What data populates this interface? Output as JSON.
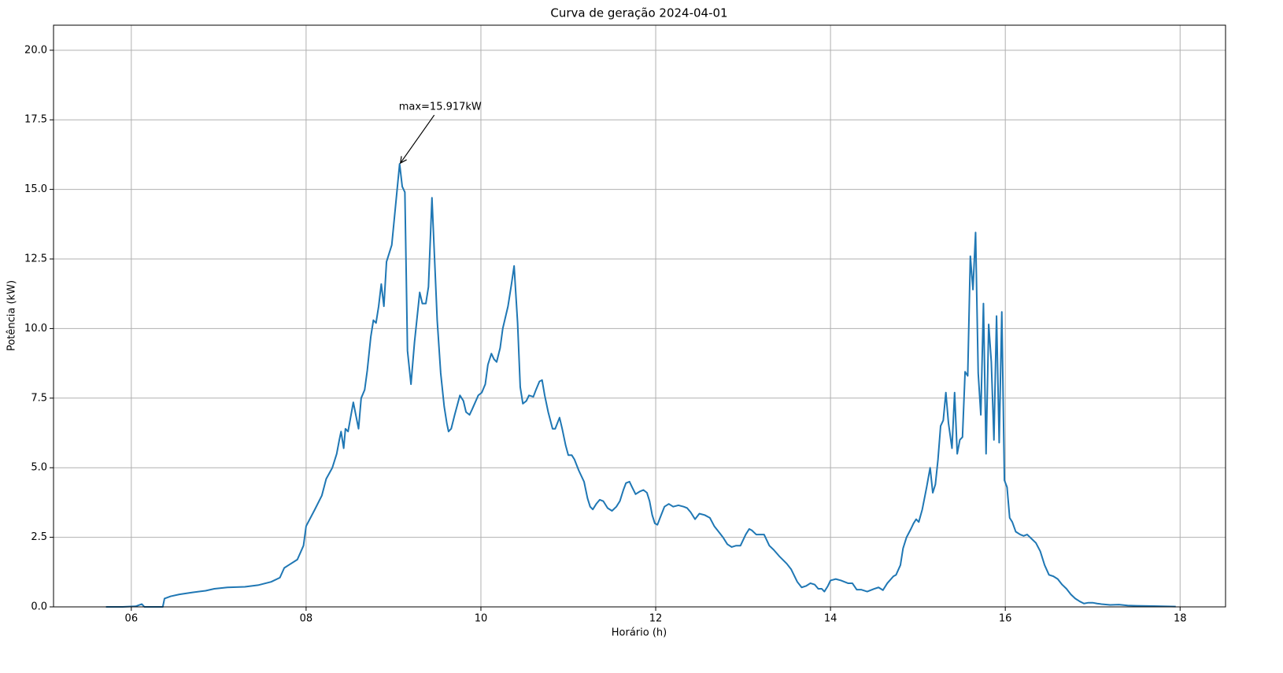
{
  "chart_data": {
    "type": "line",
    "title": "Curva de geração 2024-04-01",
    "x_label": "Horário (h)",
    "y_label": "Potência (kW)",
    "color": "#1f77b4",
    "grid": true,
    "xlim": [
      5.11,
      18.52
    ],
    "ylim": [
      0,
      20.9
    ],
    "xticks": [
      {
        "value": 6,
        "label": "06"
      },
      {
        "value": 8,
        "label": "08"
      },
      10,
      12,
      14,
      16,
      18
    ],
    "yticks": [
      {
        "value": 0,
        "label": "0.0"
      },
      2.5,
      {
        "value": 5,
        "label": "5.0"
      },
      7.5,
      {
        "value": 10,
        "label": "10.0"
      },
      12.5,
      {
        "value": 15,
        "label": "15.0"
      },
      17.5,
      {
        "value": 20,
        "label": "20.0"
      }
    ],
    "annotation": {
      "text": "max=15.917kW",
      "x": 9.07,
      "y": 15.917
    },
    "x": [
      5.71,
      5.9,
      6.05,
      6.12,
      6.15,
      6.36,
      6.38,
      6.45,
      6.55,
      6.7,
      6.85,
      6.95,
      7.1,
      7.3,
      7.45,
      7.6,
      7.7,
      7.75,
      7.8,
      7.9,
      7.97,
      8.0,
      8.1,
      8.18,
      8.23,
      8.3,
      8.35,
      8.38,
      8.4,
      8.43,
      8.45,
      8.48,
      8.54,
      8.6,
      8.63,
      8.67,
      8.7,
      8.74,
      8.77,
      8.8,
      8.83,
      8.86,
      8.89,
      8.92,
      8.98,
      9.07,
      9.1,
      9.13,
      9.16,
      9.2,
      9.24,
      9.3,
      9.33,
      9.37,
      9.4,
      9.44,
      9.47,
      9.5,
      9.54,
      9.58,
      9.61,
      9.63,
      9.66,
      9.7,
      9.76,
      9.8,
      9.83,
      9.87,
      9.9,
      9.97,
      10.01,
      10.05,
      10.08,
      10.12,
      10.15,
      10.18,
      10.22,
      10.25,
      10.31,
      10.35,
      10.38,
      10.42,
      10.45,
      10.48,
      10.52,
      10.55,
      10.6,
      10.63,
      10.67,
      10.7,
      10.73,
      10.77,
      10.82,
      10.85,
      10.9,
      10.93,
      10.97,
      11.0,
      11.04,
      11.07,
      11.12,
      11.18,
      11.22,
      11.25,
      11.28,
      11.32,
      11.36,
      11.4,
      11.45,
      11.5,
      11.55,
      11.59,
      11.63,
      11.66,
      11.7,
      11.73,
      11.77,
      11.82,
      11.86,
      11.9,
      11.93,
      11.96,
      11.99,
      12.02,
      12.05,
      12.1,
      12.15,
      12.2,
      12.26,
      12.32,
      12.36,
      12.4,
      12.45,
      12.5,
      12.56,
      12.62,
      12.67,
      12.72,
      12.77,
      12.82,
      12.87,
      12.92,
      12.97,
      13.03,
      13.07,
      13.1,
      13.15,
      13.2,
      13.24,
      13.3,
      13.35,
      13.42,
      13.5,
      13.55,
      13.62,
      13.67,
      13.72,
      13.77,
      13.82,
      13.86,
      13.9,
      13.93,
      13.97,
      14.0,
      14.06,
      14.12,
      14.2,
      14.25,
      14.3,
      14.35,
      14.42,
      14.5,
      14.55,
      14.6,
      14.65,
      14.72,
      14.75,
      14.8,
      14.83,
      14.87,
      14.92,
      14.95,
      14.98,
      15.01,
      15.05,
      15.1,
      15.14,
      15.17,
      15.2,
      15.23,
      15.26,
      15.29,
      15.32,
      15.35,
      15.39,
      15.42,
      15.45,
      15.48,
      15.51,
      15.54,
      15.57,
      15.6,
      15.63,
      15.66,
      15.69,
      15.72,
      15.75,
      15.78,
      15.81,
      15.84,
      15.87,
      15.9,
      15.93,
      15.96,
      15.99,
      16.02,
      16.05,
      16.08,
      16.12,
      16.17,
      16.21,
      16.25,
      16.3,
      16.35,
      16.4,
      16.45,
      16.5,
      16.55,
      16.6,
      16.65,
      16.7,
      16.75,
      16.8,
      16.85,
      16.9,
      16.95,
      17.0,
      17.05,
      17.1,
      17.2,
      17.3,
      17.4,
      17.5,
      17.7,
      17.95
    ],
    "values": [
      0,
      0,
      0.02,
      0.1,
      0,
      0,
      0.3,
      0.38,
      0.45,
      0.52,
      0.58,
      0.65,
      0.7,
      0.72,
      0.78,
      0.9,
      1.05,
      1.4,
      1.5,
      1.7,
      2.2,
      2.9,
      3.5,
      4.0,
      4.6,
      5.0,
      5.5,
      6.0,
      6.3,
      5.7,
      6.4,
      6.3,
      7.35,
      6.4,
      7.5,
      7.8,
      8.5,
      9.7,
      10.3,
      10.2,
      10.8,
      11.6,
      10.8,
      12.4,
      13.0,
      15.917,
      15.1,
      14.9,
      9.2,
      8.0,
      9.5,
      11.3,
      10.9,
      10.9,
      11.5,
      14.7,
      12.5,
      10.3,
      8.4,
      7.2,
      6.6,
      6.3,
      6.4,
      6.9,
      7.6,
      7.4,
      7.0,
      6.9,
      7.1,
      7.6,
      7.7,
      8.0,
      8.7,
      9.1,
      8.9,
      8.8,
      9.3,
      10.0,
      10.8,
      11.6,
      12.25,
      10.2,
      7.9,
      7.3,
      7.4,
      7.6,
      7.55,
      7.8,
      8.1,
      8.15,
      7.6,
      7.0,
      6.4,
      6.4,
      6.8,
      6.4,
      5.8,
      5.45,
      5.45,
      5.3,
      4.9,
      4.5,
      3.9,
      3.6,
      3.5,
      3.7,
      3.85,
      3.8,
      3.55,
      3.45,
      3.6,
      3.8,
      4.2,
      4.45,
      4.5,
      4.3,
      4.05,
      4.15,
      4.2,
      4.1,
      3.8,
      3.3,
      3.0,
      2.95,
      3.2,
      3.6,
      3.7,
      3.6,
      3.65,
      3.6,
      3.55,
      3.4,
      3.15,
      3.35,
      3.3,
      3.2,
      2.9,
      2.7,
      2.5,
      2.25,
      2.15,
      2.2,
      2.2,
      2.6,
      2.8,
      2.75,
      2.6,
      2.6,
      2.6,
      2.2,
      2.05,
      1.8,
      1.55,
      1.35,
      0.9,
      0.7,
      0.75,
      0.85,
      0.8,
      0.65,
      0.65,
      0.55,
      0.75,
      0.95,
      1.0,
      0.95,
      0.85,
      0.85,
      0.62,
      0.62,
      0.55,
      0.65,
      0.7,
      0.6,
      0.85,
      1.1,
      1.15,
      1.5,
      2.1,
      2.5,
      2.8,
      3.0,
      3.15,
      3.05,
      3.5,
      4.3,
      5.0,
      4.1,
      4.4,
      5.3,
      6.5,
      6.7,
      7.7,
      6.6,
      5.7,
      7.7,
      5.5,
      6.0,
      6.1,
      8.45,
      8.3,
      12.6,
      11.4,
      13.45,
      8.4,
      6.9,
      10.9,
      5.5,
      10.15,
      8.8,
      6.0,
      10.45,
      5.9,
      10.6,
      4.55,
      4.3,
      3.2,
      3.05,
      2.7,
      2.6,
      2.55,
      2.6,
      2.45,
      2.3,
      2.0,
      1.5,
      1.15,
      1.1,
      1.0,
      0.8,
      0.65,
      0.45,
      0.3,
      0.2,
      0.12,
      0.15,
      0.15,
      0.12,
      0.1,
      0.07,
      0.08,
      0.05,
      0.04,
      0.03,
      0.01
    ]
  }
}
